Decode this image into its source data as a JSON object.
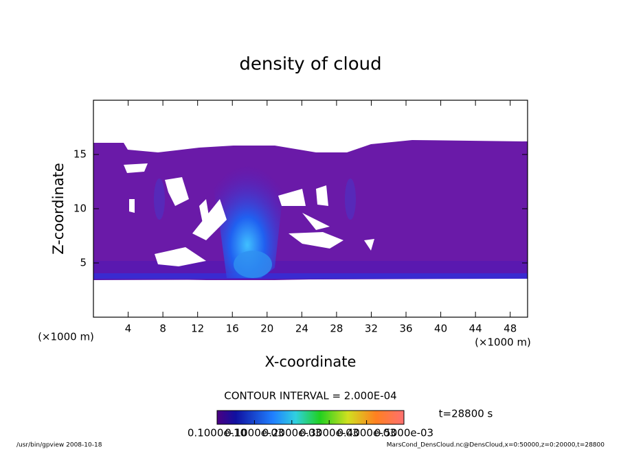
{
  "chart_data": {
    "type": "contour",
    "title": "density of cloud",
    "x_label": "X-coordinate",
    "y_label": "Z-coordinate",
    "x_unit": "(×1000 m)",
    "y_unit": "(×1000 m)",
    "xlim": [
      0,
      50
    ],
    "xticks": [
      4,
      8,
      12,
      16,
      20,
      24,
      28,
      32,
      36,
      40,
      44,
      48
    ],
    "ylim": [
      0,
      20
    ],
    "yticks": [
      5,
      10,
      15
    ],
    "contour_interval": "CONTOUR INTERVAL = 2.000E-04",
    "time_label": "t=28800 s",
    "colorbar": {
      "lim": [
        1e-11,
        0.0005
      ],
      "ticks": [
        {
          "value": 1e-11,
          "label": "0.1000e-10"
        },
        {
          "value": 0.0001,
          "label": "0.1000e-03"
        },
        {
          "value": 0.0002,
          "label": "0.2000e-03"
        },
        {
          "value": 0.0003,
          "label": "0.3000e-03"
        },
        {
          "value": 0.0004,
          "label": "0.4000e-03"
        },
        {
          "value": 0.0005,
          "label": "0.5000e-03"
        }
      ]
    },
    "footer_left": "/usr/bin/gpview  2008-10-18",
    "footer_right": "MarsCond_DensCloud.nc@DensCloud,x=0:50000,z=0:20000,t=28800"
  }
}
